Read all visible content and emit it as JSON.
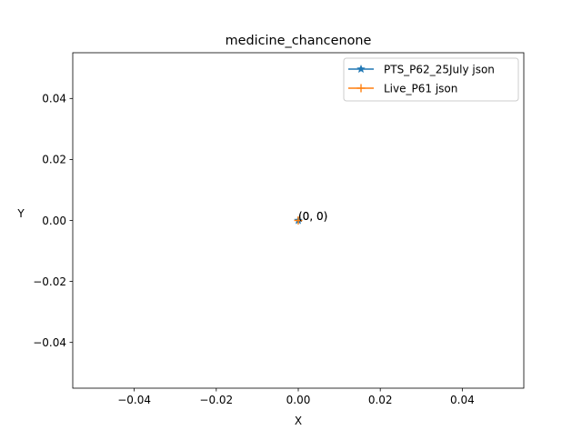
{
  "chart_data": {
    "type": "line",
    "title": "medicine_chancenone",
    "xlabel": "X",
    "ylabel": "Y",
    "xlim": [
      -0.055,
      0.055
    ],
    "ylim": [
      -0.055,
      0.055
    ],
    "xticks": [
      -0.04,
      -0.02,
      0.0,
      0.02,
      0.04
    ],
    "xtick_labels": [
      "−0.04",
      "−0.02",
      "0.00",
      "0.02",
      "0.04"
    ],
    "yticks": [
      -0.04,
      -0.02,
      0.0,
      0.02,
      0.04
    ],
    "ytick_labels": [
      "−0.04",
      "−0.02",
      "0.00",
      "0.02",
      "0.04"
    ],
    "grid": false,
    "legend_position": "top-right",
    "series": [
      {
        "name": "PTS_P62_25July json",
        "x": [
          0
        ],
        "y": [
          0
        ],
        "marker": "star",
        "color": "#1f77b4"
      },
      {
        "name": "Live_P61 json",
        "x": [
          0
        ],
        "y": [
          0
        ],
        "marker": "plus",
        "color": "#ff7f0e"
      }
    ],
    "annotations": [
      {
        "x": 0,
        "y": 0,
        "text": "(0, 0)"
      },
      {
        "x": 0,
        "y": 0,
        "text": "(0, 0)"
      }
    ]
  }
}
